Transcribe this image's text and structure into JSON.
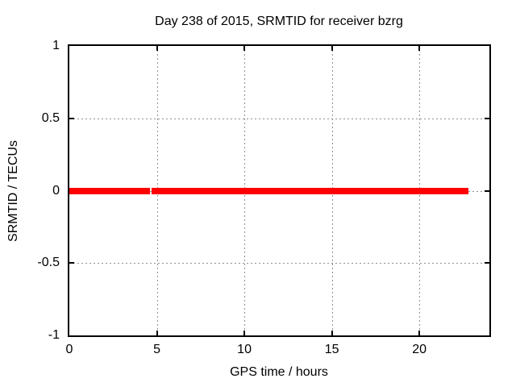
{
  "chart_data": {
    "type": "line",
    "title": "Day 238 of 2015, SRMTID for receiver bzrg",
    "xlabel": "GPS time / hours",
    "ylabel": "SRMTID / TECUs",
    "xlim": [
      0,
      24
    ],
    "ylim": [
      -1,
      1
    ],
    "xticks": [
      0,
      5,
      10,
      15,
      20
    ],
    "yticks": [
      -1,
      -0.5,
      0,
      0.5,
      1
    ],
    "xtick_labels": [
      "0",
      "5",
      "10",
      "15",
      "20"
    ],
    "ytick_labels": [
      "-1",
      "-0.5",
      "0",
      "0.5",
      "1"
    ],
    "grid": true,
    "legend_position": "none",
    "colors": {
      "background": "#ffffff",
      "axis": "#000000",
      "grid": "#909090",
      "series": "#ff0000"
    },
    "series": [
      {
        "name": "SRMTID",
        "color": "#ff0000",
        "style": "thick constant line at y = 0",
        "segments": [
          {
            "x_start": 0.0,
            "x_end": 4.59,
            "y": 0
          },
          {
            "x_start": 4.71,
            "x_end": 22.81,
            "y": 0
          }
        ]
      }
    ]
  }
}
